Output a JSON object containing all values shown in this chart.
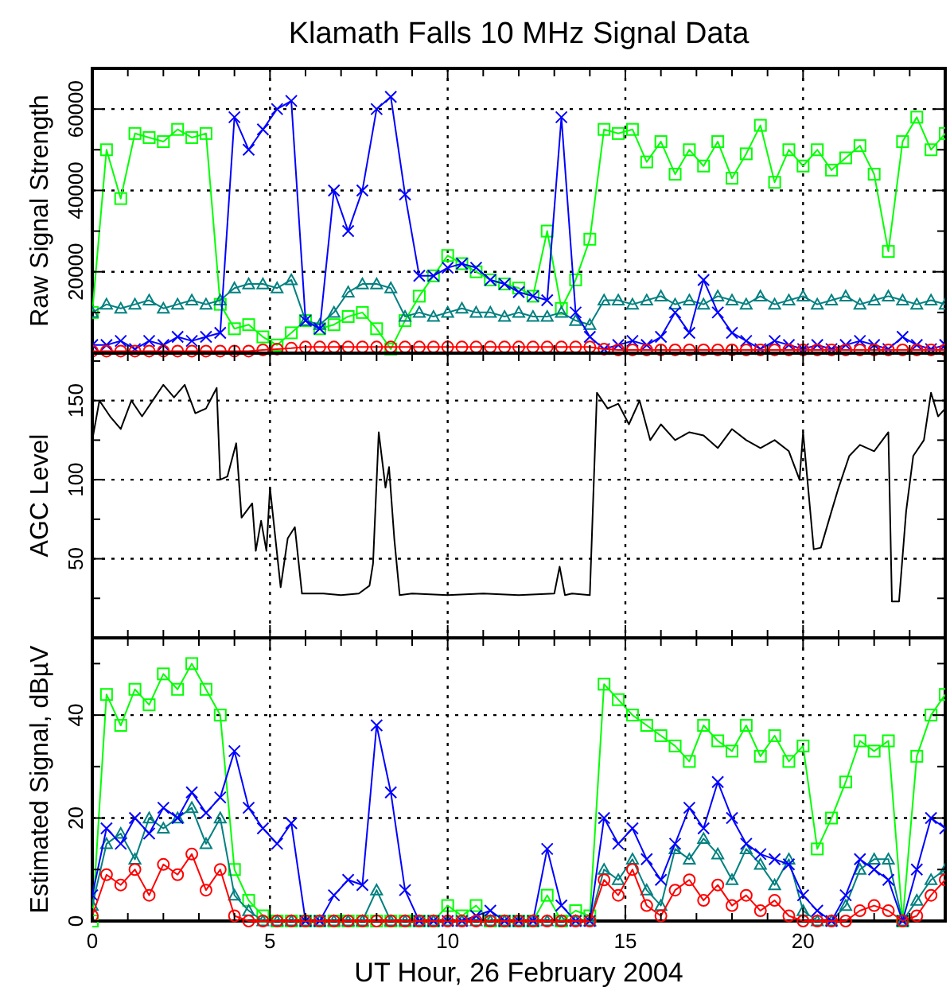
{
  "chart_data": [
    {
      "type": "line",
      "title": "Klamath Falls 10 MHz Signal Data",
      "ylabel": "Raw Signal Strength",
      "tick_labels": "y",
      "grid": true,
      "line_style": "solid",
      "xlim": [
        0,
        24
      ],
      "xticks": [
        0,
        {
          "value": 1,
          "label": null
        },
        {
          "value": 2,
          "label": null
        },
        {
          "value": 3,
          "label": null
        },
        {
          "value": 4,
          "label": null
        },
        5,
        {
          "value": 6,
          "label": null
        },
        {
          "value": 7,
          "label": null
        },
        {
          "value": 8,
          "label": null
        },
        {
          "value": 9,
          "label": null
        },
        10,
        {
          "value": 11,
          "label": null
        },
        {
          "value": 12,
          "label": null
        },
        {
          "value": 13,
          "label": null
        },
        {
          "value": 14,
          "label": null
        },
        15,
        {
          "value": 16,
          "label": null
        },
        {
          "value": 17,
          "label": null
        },
        {
          "value": 18,
          "label": null
        },
        {
          "value": 19,
          "label": null
        },
        20,
        {
          "value": 21,
          "label": null
        },
        {
          "value": 22,
          "label": null
        },
        {
          "value": 23,
          "label": null
        },
        {
          "value": 24,
          "label": null
        }
      ],
      "ylim": [
        0,
        70000
      ],
      "yticks": [
        {
          "value": 10000,
          "label": null
        },
        20000,
        {
          "value": 30000,
          "label": null
        },
        40000,
        {
          "value": 50000,
          "label": null
        },
        60000
      ],
      "x": [
        0,
        0.4,
        0.8,
        1.2,
        1.6,
        2,
        2.4,
        2.8,
        3.2,
        3.6,
        4,
        4.4,
        4.8,
        5.2,
        5.6,
        6,
        6.4,
        6.8,
        7.2,
        7.6,
        8,
        8.4,
        8.8,
        9.2,
        9.6,
        10,
        10.4,
        10.8,
        11.2,
        11.6,
        12,
        12.4,
        12.8,
        13.2,
        13.6,
        14,
        14.4,
        14.8,
        15.2,
        15.6,
        16,
        16.4,
        16.8,
        17.2,
        17.6,
        18,
        18.4,
        18.8,
        19.2,
        19.6,
        20,
        20.4,
        20.8,
        21.2,
        21.6,
        22,
        22.4,
        22.8,
        23.2,
        23.6,
        24
      ],
      "series": [
        {
          "color": "#00ff00",
          "marker": "square",
          "values": [
            10000,
            50000,
            38000,
            54000,
            53000,
            52000,
            55000,
            53000,
            54000,
            12000,
            6000,
            7000,
            4000,
            2000,
            5000,
            8000,
            6000,
            7000,
            9000,
            10000,
            6000,
            1000,
            8000,
            14000,
            19000,
            24000,
            22000,
            20000,
            18000,
            17000,
            16000,
            14000,
            30000,
            11000,
            18000,
            28000,
            55000,
            54000,
            55000,
            47000,
            52000,
            44000,
            50000,
            46000,
            52000,
            43000,
            49000,
            56000,
            42000,
            50000,
            46000,
            50000,
            45000,
            48000,
            51000,
            44000,
            25000,
            52000,
            58000,
            50000,
            54000
          ]
        },
        {
          "color": "#008080",
          "marker": "triangle",
          "values": [
            10000,
            12000,
            11000,
            12000,
            13000,
            11000,
            12000,
            13000,
            12000,
            13000,
            16000,
            17000,
            17000,
            16000,
            18000,
            8000,
            7000,
            10000,
            15000,
            17000,
            17000,
            16000,
            9000,
            10000,
            9000,
            10000,
            11000,
            10000,
            10000,
            9000,
            10000,
            9000,
            9000,
            10000,
            8000,
            7000,
            13000,
            13000,
            12000,
            13000,
            14000,
            12000,
            13000,
            12000,
            14000,
            13000,
            12000,
            14000,
            12000,
            13000,
            14000,
            12000,
            13000,
            14000,
            12000,
            13000,
            14000,
            13000,
            12000,
            13000,
            12000
          ]
        },
        {
          "color": "#0000ff",
          "marker": "cross",
          "values": [
            2000,
            2000,
            3000,
            1000,
            3000,
            2000,
            4000,
            3000,
            4000,
            5000,
            58000,
            50000,
            55000,
            60000,
            62000,
            8000,
            6000,
            40000,
            30000,
            40000,
            60000,
            63000,
            39000,
            19000,
            19000,
            21000,
            22000,
            21000,
            18000,
            17000,
            15000,
            14000,
            13000,
            58000,
            10000,
            4000,
            1000,
            2000,
            3000,
            2000,
            4000,
            10000,
            5000,
            18000,
            10000,
            5000,
            3000,
            1000,
            3000,
            2000,
            1000,
            2000,
            1000,
            2000,
            3000,
            2000,
            1000,
            4000,
            2000,
            1000,
            2000
          ]
        },
        {
          "color": "#ff0000",
          "marker": "circle",
          "values": [
            500,
            500,
            500,
            500,
            500,
            500,
            500,
            500,
            500,
            500,
            500,
            500,
            800,
            1000,
            1200,
            1500,
            1500,
            1500,
            1500,
            1500,
            1500,
            1500,
            1500,
            1500,
            1500,
            1500,
            1500,
            1500,
            1500,
            1500,
            1500,
            1500,
            1500,
            1500,
            1500,
            1500,
            1000,
            800,
            800,
            800,
            800,
            800,
            800,
            800,
            800,
            800,
            800,
            800,
            800,
            800,
            800,
            800,
            800,
            800,
            800,
            800,
            800,
            800,
            800,
            800,
            800
          ]
        }
      ]
    },
    {
      "type": "line",
      "ylabel": "AGC Level",
      "tick_labels": "y",
      "grid": true,
      "line_style": "solid",
      "xlim": [
        0,
        24
      ],
      "xticks": [
        0,
        {
          "value": 1,
          "label": null
        },
        {
          "value": 2,
          "label": null
        },
        {
          "value": 3,
          "label": null
        },
        {
          "value": 4,
          "label": null
        },
        5,
        {
          "value": 6,
          "label": null
        },
        {
          "value": 7,
          "label": null
        },
        {
          "value": 8,
          "label": null
        },
        {
          "value": 9,
          "label": null
        },
        10,
        {
          "value": 11,
          "label": null
        },
        {
          "value": 12,
          "label": null
        },
        {
          "value": 13,
          "label": null
        },
        {
          "value": 14,
          "label": null
        },
        15,
        {
          "value": 16,
          "label": null
        },
        {
          "value": 17,
          "label": null
        },
        {
          "value": 18,
          "label": null
        },
        {
          "value": 19,
          "label": null
        },
        20,
        {
          "value": 21,
          "label": null
        },
        {
          "value": 22,
          "label": null
        },
        {
          "value": 23,
          "label": null
        },
        {
          "value": 24,
          "label": null
        }
      ],
      "ylim": [
        0,
        180
      ],
      "yticks": [
        {
          "value": 25,
          "label": null
        },
        50,
        {
          "value": 75,
          "label": null
        },
        100,
        {
          "value": 125,
          "label": null
        },
        150,
        {
          "value": 175,
          "label": null
        }
      ],
      "series": [
        {
          "color": "#000000",
          "marker": "none",
          "x": [
            0,
            0.2,
            0.5,
            0.8,
            1.1,
            1.4,
            1.7,
            2.0,
            2.3,
            2.6,
            2.9,
            3.2,
            3.5,
            3.6,
            3.8,
            4.05,
            4.2,
            4.5,
            4.6,
            4.75,
            4.9,
            5.0,
            5.3,
            5.5,
            5.7,
            5.9,
            6.5,
            7.0,
            7.5,
            7.8,
            7.9,
            8.06,
            8.25,
            8.35,
            8.5,
            8.65,
            9.0,
            10,
            11,
            12,
            13,
            13.15,
            13.3,
            13.5,
            14.0,
            14.2,
            14.5,
            14.8,
            15.1,
            15.4,
            15.7,
            16.0,
            16.4,
            16.8,
            17.2,
            17.6,
            18.0,
            18.4,
            18.8,
            19.2,
            19.6,
            19.9,
            20.0,
            20.3,
            20.5,
            20.8,
            21.0,
            21.3,
            21.6,
            22.0,
            22.4,
            22.5,
            22.7,
            22.9,
            23.1,
            23.4,
            23.6,
            23.8,
            24
          ],
          "values": [
            125,
            150,
            140,
            132,
            150,
            140,
            150,
            160,
            152,
            160,
            142,
            145,
            158,
            100,
            102,
            123,
            76,
            85,
            55,
            74,
            55,
            95,
            32,
            63,
            70,
            28,
            28,
            27,
            28,
            33,
            47,
            130,
            95,
            108,
            62,
            27,
            28,
            27,
            28,
            27,
            28,
            45,
            27,
            28,
            27,
            155,
            145,
            148,
            135,
            150,
            125,
            135,
            125,
            130,
            128,
            120,
            132,
            125,
            120,
            125,
            118,
            100,
            130,
            56,
            57,
            80,
            95,
            115,
            122,
            118,
            130,
            23,
            23,
            80,
            115,
            125,
            155,
            140,
            145
          ]
        }
      ]
    },
    {
      "type": "line",
      "xlabel": "UT Hour, 26 February 2004",
      "ylabel": "Estimated Signal, dBµV",
      "grid": true,
      "line_style": "solid",
      "xlim": [
        0,
        24
      ],
      "xticks": [
        0,
        {
          "value": 1,
          "label": null
        },
        {
          "value": 2,
          "label": null
        },
        {
          "value": 3,
          "label": null
        },
        {
          "value": 4,
          "label": null
        },
        5,
        {
          "value": 6,
          "label": null
        },
        {
          "value": 7,
          "label": null
        },
        {
          "value": 8,
          "label": null
        },
        {
          "value": 9,
          "label": null
        },
        10,
        {
          "value": 11,
          "label": null
        },
        {
          "value": 12,
          "label": null
        },
        {
          "value": 13,
          "label": null
        },
        {
          "value": 14,
          "label": null
        },
        15,
        {
          "value": 16,
          "label": null
        },
        {
          "value": 17,
          "label": null
        },
        {
          "value": 18,
          "label": null
        },
        {
          "value": 19,
          "label": null
        },
        20,
        {
          "value": 21,
          "label": null
        },
        {
          "value": 22,
          "label": null
        },
        {
          "value": 23,
          "label": null
        },
        {
          "value": 24,
          "label": null
        }
      ],
      "ylim": [
        0,
        55
      ],
      "yticks": [
        0,
        {
          "value": 10,
          "label": null
        },
        20,
        {
          "value": 30,
          "label": null
        },
        40,
        {
          "value": 50,
          "label": null
        }
      ],
      "x": [
        0,
        0.4,
        0.8,
        1.2,
        1.6,
        2,
        2.4,
        2.8,
        3.2,
        3.6,
        4,
        4.4,
        4.8,
        5.2,
        5.6,
        6,
        6.4,
        6.8,
        7.2,
        7.6,
        8,
        8.4,
        8.8,
        9.2,
        9.6,
        10,
        10.4,
        10.8,
        11.2,
        11.6,
        12,
        12.4,
        12.8,
        13.2,
        13.6,
        14,
        14.4,
        14.8,
        15.2,
        15.6,
        16,
        16.4,
        16.8,
        17.2,
        17.6,
        18,
        18.4,
        18.8,
        19.2,
        19.6,
        20,
        20.4,
        20.8,
        21.2,
        21.6,
        22,
        22.4,
        22.8,
        23.2,
        23.6,
        24
      ],
      "series": [
        {
          "color": "#00ff00",
          "marker": "square",
          "values": [
            0,
            44,
            38,
            45,
            42,
            48,
            45,
            50,
            45,
            40,
            10,
            4,
            1,
            0,
            0,
            0,
            0,
            0,
            0,
            0,
            0,
            0,
            0,
            0,
            0,
            3,
            1,
            3,
            0,
            0,
            0,
            0,
            5,
            0,
            2,
            1,
            46,
            43,
            40,
            38,
            36,
            34,
            31,
            38,
            35,
            33,
            38,
            32,
            36,
            31,
            34,
            14,
            20,
            27,
            35,
            33,
            35,
            0,
            32,
            40,
            44
          ]
        },
        {
          "color": "#008080",
          "marker": "triangle",
          "values": [
            3,
            15,
            17,
            12,
            20,
            18,
            20,
            22,
            15,
            20,
            5,
            2,
            0,
            0,
            0,
            0,
            0,
            0,
            0,
            0,
            6,
            0,
            0,
            0,
            0,
            0,
            0,
            0,
            0,
            0,
            0,
            0,
            0,
            0,
            0,
            0,
            10,
            8,
            12,
            6,
            3,
            14,
            12,
            16,
            13,
            8,
            14,
            11,
            7,
            12,
            2,
            0,
            0,
            3,
            10,
            12,
            12,
            0,
            4,
            8,
            10
          ]
        },
        {
          "color": "#0000ff",
          "marker": "cross",
          "values": [
            5,
            18,
            15,
            20,
            17,
            22,
            20,
            25,
            21,
            24,
            33,
            22,
            18,
            15,
            19,
            0,
            0,
            5,
            8,
            7,
            38,
            25,
            6,
            0,
            0,
            0,
            0,
            1,
            2,
            0,
            0,
            0,
            14,
            3,
            0,
            0,
            20,
            15,
            18,
            12,
            8,
            15,
            22,
            18,
            27,
            20,
            15,
            13,
            12,
            11,
            5,
            2,
            0,
            5,
            12,
            10,
            8,
            0,
            10,
            20,
            18
          ]
        },
        {
          "color": "#ff0000",
          "marker": "circle",
          "values": [
            1,
            9,
            7,
            10,
            5,
            11,
            9,
            13,
            6,
            10,
            1,
            0,
            0,
            0,
            0,
            0,
            0,
            0,
            0,
            0,
            0,
            0,
            0,
            0,
            0,
            0,
            0,
            0,
            0,
            0,
            0,
            0,
            0,
            0,
            0,
            0,
            8,
            5,
            10,
            3,
            1,
            6,
            8,
            4,
            7,
            3,
            5,
            2,
            4,
            1,
            0,
            0,
            0,
            0,
            2,
            3,
            2,
            0,
            1,
            5,
            8
          ]
        }
      ]
    }
  ]
}
